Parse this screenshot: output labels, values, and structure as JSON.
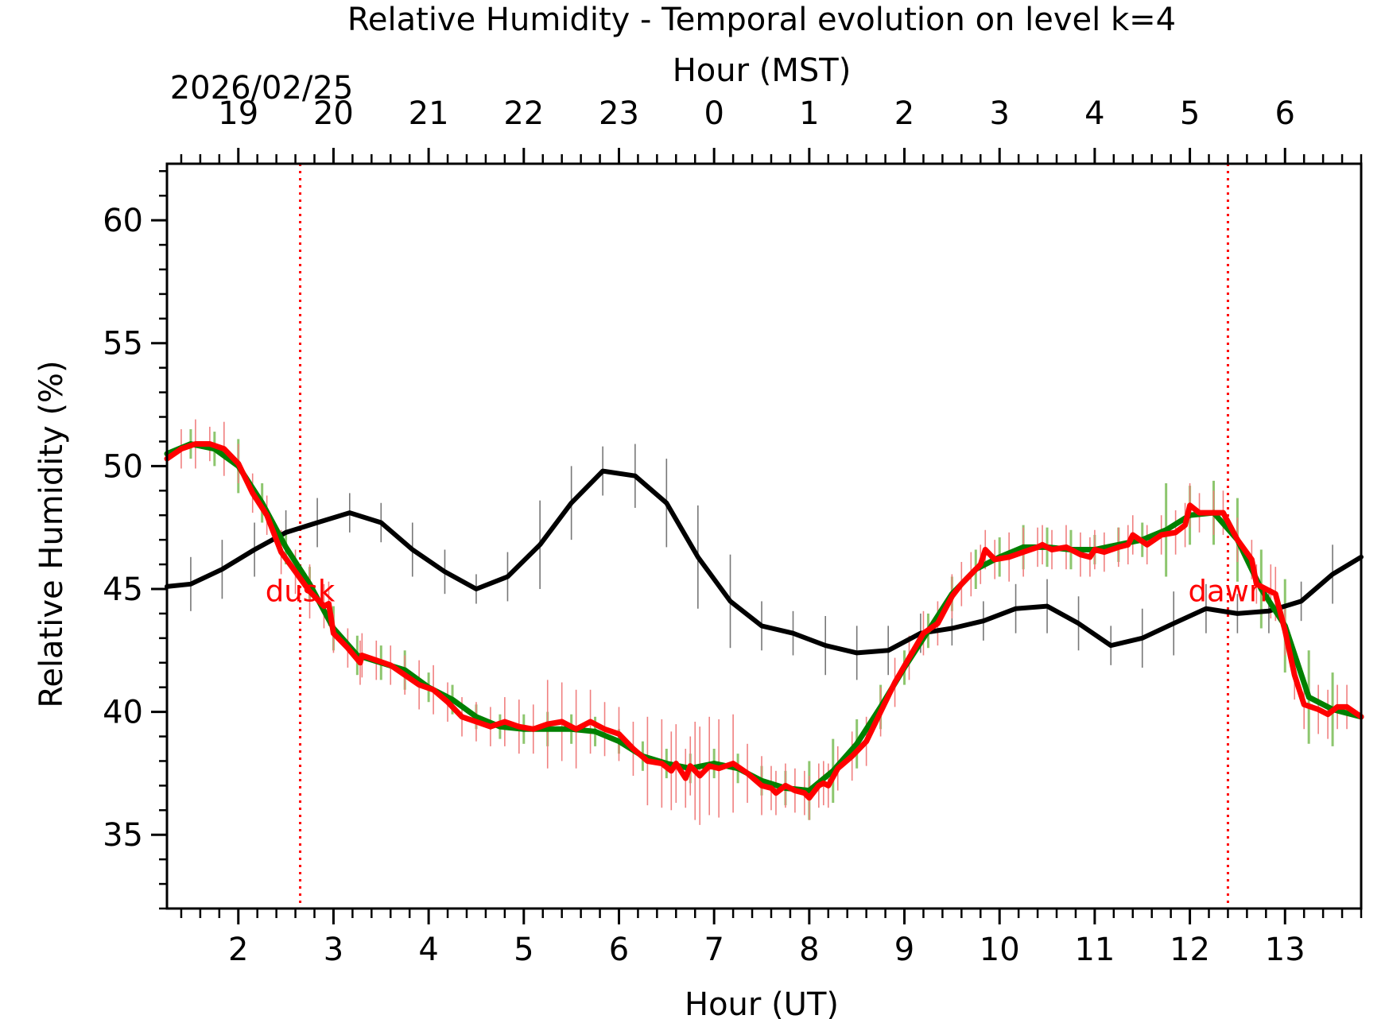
{
  "chart_data": {
    "type": "line",
    "title": "Relative Humidity - Temporal evolution on level k=4",
    "xlabel": "Hour (UT)",
    "xlabel_top": "Hour (MST)",
    "date_label": "2026/02/25",
    "ylabel": "Relative Humidity (%)",
    "xlim": [
      1.25,
      13.8
    ],
    "ylim": [
      32,
      62.3
    ],
    "x_ticks": [
      2,
      3,
      4,
      5,
      6,
      7,
      8,
      9,
      10,
      11,
      12,
      13
    ],
    "x_tick_labels": [
      "2",
      "3",
      "4",
      "5",
      "6",
      "7",
      "8",
      "9",
      "10",
      "11",
      "12",
      "13"
    ],
    "top_tick_labels": [
      "19",
      "20",
      "21",
      "22",
      "23",
      "0",
      "1",
      "2",
      "3",
      "4",
      "5",
      "6"
    ],
    "y_ticks": [
      35,
      40,
      45,
      50,
      55,
      60
    ],
    "y_tick_labels": [
      "35",
      "40",
      "45",
      "50",
      "55",
      "60"
    ],
    "vlines": [
      {
        "x": 2.65,
        "label": "dusk",
        "color": "#ff0000"
      },
      {
        "x": 12.4,
        "label": "dawn",
        "color": "#ff0000"
      }
    ],
    "series": [
      {
        "name": "black",
        "color": "#000000",
        "errcolor": "#777777",
        "x": [
          1.25,
          1.5,
          1.83,
          2.17,
          2.5,
          2.83,
          3.17,
          3.5,
          3.83,
          4.17,
          4.5,
          4.83,
          5.17,
          5.5,
          5.83,
          6.17,
          6.5,
          6.83,
          7.17,
          7.5,
          7.83,
          8.17,
          8.5,
          8.83,
          9.17,
          9.5,
          9.83,
          10.17,
          10.5,
          10.83,
          11.17,
          11.5,
          11.83,
          12.17,
          12.5,
          12.83,
          13.17,
          13.5,
          13.8
        ],
        "y": [
          45.1,
          45.2,
          45.8,
          46.6,
          47.3,
          47.7,
          48.1,
          47.7,
          46.6,
          45.7,
          45.0,
          45.5,
          46.8,
          48.5,
          49.8,
          49.6,
          48.5,
          46.3,
          44.5,
          43.5,
          43.2,
          42.7,
          42.4,
          42.5,
          43.2,
          43.4,
          43.7,
          44.2,
          44.3,
          43.6,
          42.7,
          43.0,
          43.6,
          44.2,
          44.0,
          44.1,
          44.5,
          45.6,
          46.3
        ],
        "err": [
          1.1,
          1.1,
          1.2,
          1.1,
          0.9,
          1.0,
          0.8,
          0.8,
          1.1,
          0.9,
          0.6,
          1.0,
          1.8,
          1.5,
          1.0,
          1.3,
          1.8,
          2.1,
          1.9,
          1.0,
          0.9,
          1.2,
          1.1,
          1.0,
          0.8,
          0.7,
          0.8,
          1.0,
          1.1,
          1.1,
          0.8,
          1.2,
          1.3,
          1.0,
          0.8,
          0.9,
          0.8,
          1.2,
          1.2
        ]
      },
      {
        "name": "green",
        "color": "#008000",
        "errcolor": "#8dc66e",
        "x": [
          1.25,
          1.5,
          1.75,
          2.0,
          2.25,
          2.5,
          2.75,
          3.0,
          3.25,
          3.5,
          3.75,
          4.0,
          4.25,
          4.5,
          4.75,
          5.0,
          5.25,
          5.5,
          5.75,
          6.0,
          6.25,
          6.5,
          6.75,
          7.0,
          7.25,
          7.5,
          7.75,
          8.0,
          8.25,
          8.5,
          8.75,
          9.0,
          9.25,
          9.5,
          9.75,
          10.0,
          10.25,
          10.5,
          10.75,
          11.0,
          11.25,
          11.5,
          11.75,
          12.0,
          12.25,
          12.5,
          12.75,
          13.0,
          13.25,
          13.5,
          13.8
        ],
        "y": [
          50.5,
          50.9,
          50.7,
          50.0,
          48.5,
          46.7,
          45.2,
          43.4,
          42.3,
          42.0,
          41.7,
          41.0,
          40.5,
          39.8,
          39.4,
          39.3,
          39.3,
          39.3,
          39.2,
          38.8,
          38.2,
          37.9,
          37.7,
          37.9,
          37.7,
          37.2,
          36.9,
          36.8,
          37.6,
          38.7,
          40.2,
          41.8,
          43.3,
          44.8,
          45.8,
          46.3,
          46.7,
          46.7,
          46.6,
          46.6,
          46.8,
          47.0,
          47.4,
          48.0,
          48.1,
          47.0,
          45.0,
          43.5,
          40.6,
          40.1,
          39.8
        ],
        "err": [
          1.8,
          0.6,
          0.7,
          1.1,
          0.8,
          0.7,
          0.7,
          0.9,
          0.8,
          0.7,
          0.8,
          0.6,
          0.6,
          0.5,
          0.5,
          0.6,
          0.7,
          0.6,
          0.6,
          0.5,
          0.6,
          0.6,
          0.6,
          0.6,
          0.6,
          0.6,
          0.7,
          1.2,
          1.3,
          1.0,
          0.9,
          0.7,
          0.7,
          0.7,
          0.8,
          0.8,
          0.9,
          0.8,
          0.8,
          0.6,
          0.7,
          0.7,
          1.9,
          1.2,
          1.3,
          1.7,
          1.6,
          1.9,
          1.9,
          1.5,
          1.1
        ]
      },
      {
        "name": "red",
        "color": "#ff0000",
        "errcolor": "#f08080",
        "x": [
          1.25,
          1.4,
          1.55,
          1.7,
          1.85,
          2.0,
          2.15,
          2.3,
          2.45,
          2.6,
          2.75,
          2.9,
          2.95,
          3.0,
          3.15,
          3.28,
          3.3,
          3.45,
          3.6,
          3.75,
          3.9,
          4.05,
          4.2,
          4.35,
          4.5,
          4.65,
          4.8,
          4.95,
          5.1,
          5.25,
          5.4,
          5.55,
          5.7,
          5.85,
          6.0,
          6.15,
          6.3,
          6.45,
          6.55,
          6.6,
          6.7,
          6.75,
          6.8,
          6.85,
          6.95,
          7.05,
          7.2,
          7.35,
          7.5,
          7.6,
          7.65,
          7.75,
          7.85,
          7.95,
          8.0,
          8.1,
          8.15,
          8.2,
          8.3,
          8.45,
          8.6,
          8.75,
          8.9,
          9.05,
          9.2,
          9.35,
          9.5,
          9.6,
          9.7,
          9.8,
          9.85,
          9.95,
          10.1,
          10.25,
          10.4,
          10.45,
          10.55,
          10.7,
          10.85,
          10.95,
          11.0,
          11.1,
          11.25,
          11.35,
          11.4,
          11.55,
          11.7,
          11.85,
          11.95,
          12.0,
          12.1,
          12.25,
          12.35,
          12.5,
          12.65,
          12.7,
          12.85,
          12.9,
          13.0,
          13.1,
          13.2,
          13.35,
          13.45,
          13.55,
          13.65,
          13.8
        ],
        "y": [
          50.3,
          50.7,
          50.9,
          50.9,
          50.7,
          50.1,
          48.9,
          48.0,
          46.5,
          45.7,
          44.9,
          44.3,
          44.4,
          43.2,
          42.6,
          42.0,
          42.3,
          42.1,
          41.9,
          41.5,
          41.1,
          40.9,
          40.4,
          39.8,
          39.6,
          39.4,
          39.6,
          39.4,
          39.3,
          39.5,
          39.6,
          39.3,
          39.6,
          39.3,
          39.1,
          38.5,
          38.0,
          37.9,
          37.6,
          37.9,
          37.3,
          37.8,
          37.6,
          37.4,
          37.8,
          37.7,
          37.9,
          37.5,
          37.0,
          36.9,
          36.7,
          37.0,
          36.8,
          36.7,
          36.5,
          37.0,
          37.1,
          37.0,
          37.7,
          38.2,
          38.8,
          40.0,
          41.2,
          42.2,
          43.2,
          43.6,
          44.7,
          45.2,
          45.6,
          46.0,
          46.6,
          46.2,
          46.3,
          46.5,
          46.7,
          46.8,
          46.6,
          46.7,
          46.4,
          46.3,
          46.6,
          46.5,
          46.7,
          46.8,
          47.2,
          46.8,
          47.2,
          47.3,
          47.6,
          48.4,
          48.1,
          48.1,
          48.1,
          47.0,
          46.2,
          45.2,
          44.9,
          44.8,
          43.3,
          41.5,
          40.3,
          40.1,
          39.9,
          40.2,
          40.2,
          39.8
        ],
        "err": [
          0.8,
          0.8,
          1.0,
          0.7,
          1.1,
          0.8,
          0.8,
          0.8,
          0.9,
          0.9,
          1.1,
          0.9,
          0.9,
          0.8,
          0.8,
          0.9,
          0.9,
          0.8,
          0.8,
          0.8,
          1.0,
          1.0,
          0.8,
          0.8,
          0.8,
          0.8,
          1.0,
          1.1,
          1.0,
          1.8,
          1.6,
          1.6,
          1.3,
          1.1,
          1.1,
          1.1,
          1.8,
          1.8,
          1.6,
          1.6,
          1.2,
          1.2,
          2.0,
          2.0,
          2.0,
          2.0,
          2.0,
          1.2,
          1.2,
          0.9,
          0.9,
          0.9,
          0.9,
          0.9,
          0.9,
          0.9,
          0.9,
          0.9,
          0.9,
          1.0,
          1.0,
          1.0,
          1.0,
          0.9,
          0.9,
          0.9,
          0.9,
          0.9,
          0.9,
          0.8,
          0.8,
          0.8,
          1.0,
          1.0,
          0.8,
          0.8,
          0.8,
          0.9,
          0.9,
          0.8,
          0.8,
          0.8,
          0.8,
          0.8,
          0.8,
          0.8,
          0.8,
          0.9,
          0.9,
          0.9,
          0.8,
          0.9,
          0.9,
          0.9,
          0.8,
          0.8,
          1.1,
          1.1,
          1.0,
          1.0,
          1.0,
          1.0,
          1.0,
          0.9,
          0.9,
          0.9
        ]
      }
    ]
  }
}
